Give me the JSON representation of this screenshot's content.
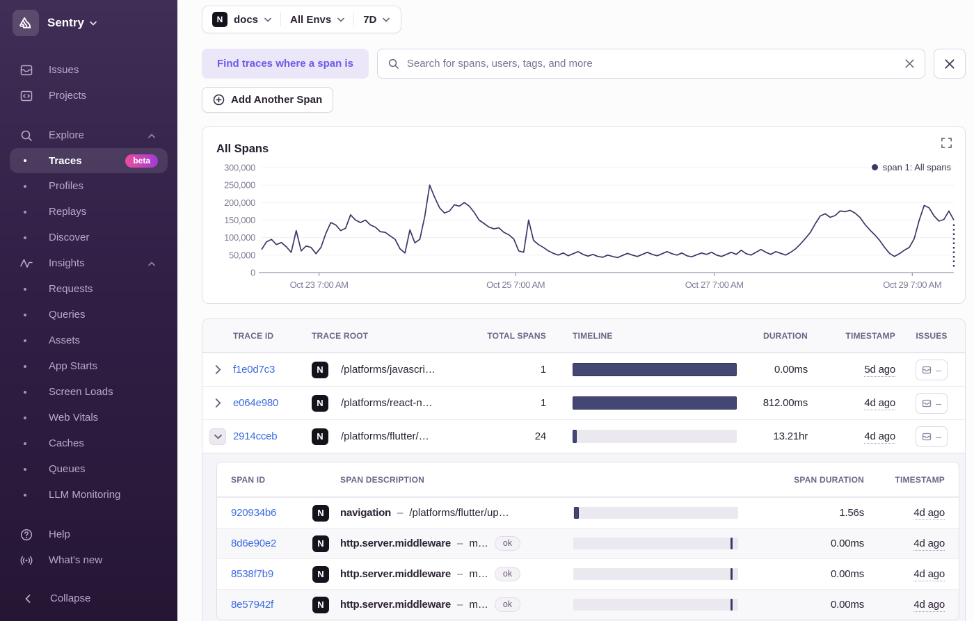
{
  "colors": {
    "accent_purple": "#6a5ae8",
    "link_blue": "#3d6be0",
    "chart_line": "#3d3568",
    "timeline_bar": "#444674",
    "beta_gradient": [
      "#ed4d9d",
      "#a13bd6"
    ],
    "sidebar_bg_top": "#402e56",
    "sidebar_bg_bottom": "#261634"
  },
  "sidebar": {
    "brand": "Sentry",
    "items_top": [
      {
        "label": "Issues"
      },
      {
        "label": "Projects"
      }
    ],
    "explore": {
      "label": "Explore",
      "items": [
        {
          "label": "Traces",
          "badge": "beta",
          "active": true
        },
        {
          "label": "Profiles"
        },
        {
          "label": "Replays"
        },
        {
          "label": "Discover"
        }
      ]
    },
    "insights": {
      "label": "Insights",
      "items": [
        {
          "label": "Requests"
        },
        {
          "label": "Queries"
        },
        {
          "label": "Assets"
        },
        {
          "label": "App Starts"
        },
        {
          "label": "Screen Loads"
        },
        {
          "label": "Web Vitals"
        },
        {
          "label": "Caches"
        },
        {
          "label": "Queues"
        },
        {
          "label": "LLM Monitoring"
        }
      ]
    },
    "footer_items": [
      {
        "label": "Help"
      },
      {
        "label": "What's new"
      }
    ],
    "collapse_label": "Collapse"
  },
  "topbar": {
    "project": "docs",
    "environment": "All Envs",
    "date_range": "7D"
  },
  "search": {
    "chip_label": "Find traces where a span is",
    "placeholder": "Search for spans, users, tags, and more"
  },
  "actions": {
    "add_span_label": "Add Another Span"
  },
  "chart_data": {
    "type": "line",
    "title": "All Spans",
    "legend": [
      {
        "name": "span 1: All spans",
        "color": "#3d3568"
      }
    ],
    "ylim": [
      0,
      300000
    ],
    "yticks": [
      [
        0,
        "0"
      ],
      [
        50000,
        "50,000"
      ],
      [
        100000,
        "100,000"
      ],
      [
        150000,
        "150,000"
      ],
      [
        200000,
        "200,000"
      ],
      [
        250000,
        "250,000"
      ],
      [
        300000,
        "300,000"
      ]
    ],
    "xticks": [
      [
        0.083,
        "Oct 23 7:00 AM"
      ],
      [
        0.367,
        "Oct 25 7:00 AM"
      ],
      [
        0.654,
        "Oct 27 7:00 AM"
      ],
      [
        0.94,
        "Oct 29 7:00 AM"
      ]
    ],
    "grid": true,
    "incomplete_end_marker": true,
    "values": [
      66000,
      88000,
      95000,
      80000,
      86000,
      74000,
      58000,
      120000,
      62000,
      76000,
      72000,
      54000,
      72000,
      112000,
      143000,
      136000,
      120000,
      127000,
      165000,
      150000,
      143000,
      150000,
      136000,
      130000,
      117000,
      115000,
      105000,
      95000,
      68000,
      56000,
      122000,
      85000,
      95000,
      160000,
      250000,
      215000,
      185000,
      170000,
      176000,
      194000,
      190000,
      200000,
      190000,
      172000,
      150000,
      140000,
      130000,
      125000,
      128000,
      115000,
      108000,
      96000,
      62000,
      58000,
      150000,
      92000,
      80000,
      72000,
      62000,
      55000,
      50000,
      56000,
      48000,
      54000,
      60000,
      52000,
      47000,
      52000,
      46000,
      44000,
      50000,
      46000,
      43000,
      49000,
      55000,
      50000,
      46000,
      52000,
      58000,
      52000,
      48000,
      54000,
      60000,
      54000,
      50000,
      56000,
      48000,
      45000,
      51000,
      56000,
      52000,
      58000,
      50000,
      46000,
      52000,
      58000,
      52000,
      64000,
      54000,
      50000,
      58000,
      66000,
      58000,
      52000,
      60000,
      55000,
      50000,
      58000,
      68000,
      82000,
      98000,
      115000,
      140000,
      162000,
      168000,
      158000,
      163000,
      176000,
      174000,
      178000,
      170000,
      158000,
      138000,
      122000,
      108000,
      92000,
      72000,
      55000,
      46000,
      54000,
      64000,
      72000,
      97000,
      150000,
      192000,
      185000,
      162000,
      147000,
      152000,
      176000,
      150000
    ]
  },
  "table": {
    "headers": [
      "TRACE ID",
      "TRACE ROOT",
      "TOTAL SPANS",
      "TIMELINE",
      "DURATION",
      "TIMESTAMP",
      "ISSUES"
    ],
    "desc_separator": "–",
    "issues_placeholder": "–",
    "rows": [
      {
        "id": "f1e0d7c3",
        "root": "/platforms/javascri…",
        "total_spans": "1",
        "duration": "0.00ms",
        "timestamp": "5d ago",
        "timeline": {
          "left_pct": 0,
          "width_pct": 100
        }
      },
      {
        "id": "e064e980",
        "root": "/platforms/react-n…",
        "total_spans": "1",
        "duration": "812.00ms",
        "timestamp": "4d ago",
        "timeline": {
          "left_pct": 0,
          "width_pct": 100
        }
      },
      {
        "id": "2914cceb",
        "root": "/platforms/flutter/…",
        "total_spans": "24",
        "duration": "13.21hr",
        "timestamp": "4d ago",
        "timeline": {
          "left_pct": 0,
          "width_pct": 2.7
        },
        "expanded": true
      }
    ],
    "span_table": {
      "headers": [
        "SPAN ID",
        "SPAN DESCRIPTION",
        "SPAN DURATION",
        "TIMESTAMP"
      ],
      "rows": [
        {
          "id": "920934b6",
          "op": "navigation",
          "detail": "/platforms/flutter/up…",
          "status": "",
          "duration": "1.56s",
          "timestamp": "4d ago",
          "timeline": {
            "type": "bar",
            "left_pct": 0.4,
            "width_pct": 3
          }
        },
        {
          "id": "8d6e90e2",
          "op": "http.server.middleware",
          "detail": "m…",
          "status": "ok",
          "duration": "0.00ms",
          "timestamp": "4d ago",
          "timeline": {
            "type": "tick",
            "left_pct": 95.5
          }
        },
        {
          "id": "8538f7b9",
          "op": "http.server.middleware",
          "detail": "m…",
          "status": "ok",
          "duration": "0.00ms",
          "timestamp": "4d ago",
          "timeline": {
            "type": "tick",
            "left_pct": 95.5
          }
        },
        {
          "id": "8e57942f",
          "op": "http.server.middleware",
          "detail": "m…",
          "status": "ok",
          "duration": "0.00ms",
          "timestamp": "4d ago",
          "timeline": {
            "type": "tick",
            "left_pct": 95.5
          }
        }
      ]
    }
  }
}
